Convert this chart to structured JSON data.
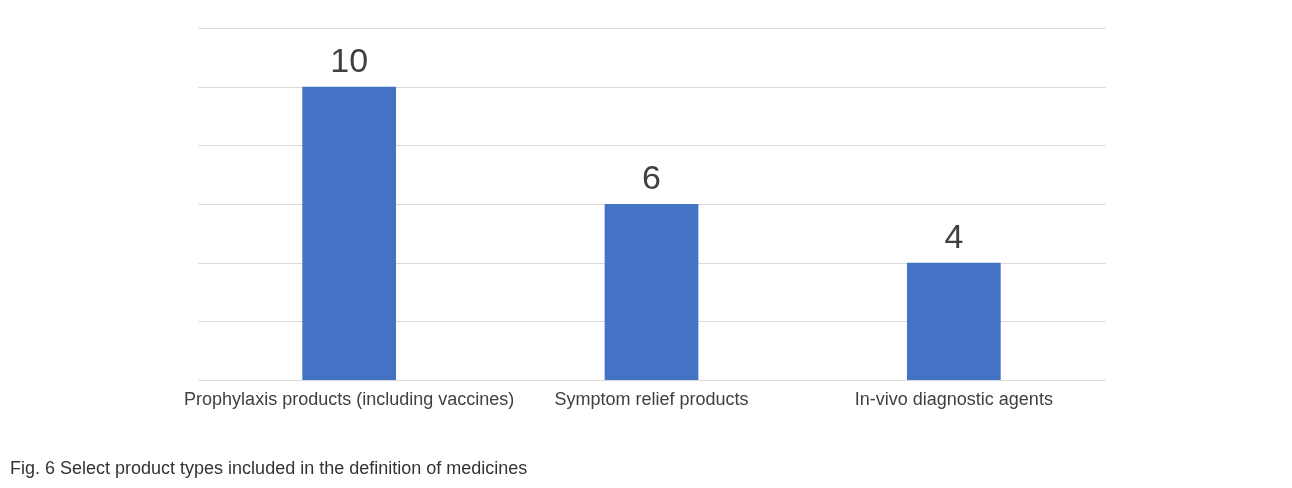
{
  "chart_data": {
    "type": "bar",
    "categories": [
      "Prophylaxis products (including vaccines)",
      "Symptom relief products",
      "In-vivo diagnostic agents"
    ],
    "values": [
      10,
      6,
      4
    ],
    "color": "#4472c4",
    "ylim": [
      0,
      12
    ],
    "yticks": [
      {
        "value": 0,
        "label": null
      },
      {
        "value": 2,
        "label": null
      },
      {
        "value": 4,
        "label": null
      },
      {
        "value": 6,
        "label": null
      },
      {
        "value": 8,
        "label": null
      },
      {
        "value": 10,
        "label": null
      },
      {
        "value": 12,
        "label": null
      }
    ],
    "grid": true,
    "tick_labels": "x",
    "data_labels": true,
    "annotations": [
      "Fig. 6 Select product types included in the definition of medicines"
    ]
  }
}
